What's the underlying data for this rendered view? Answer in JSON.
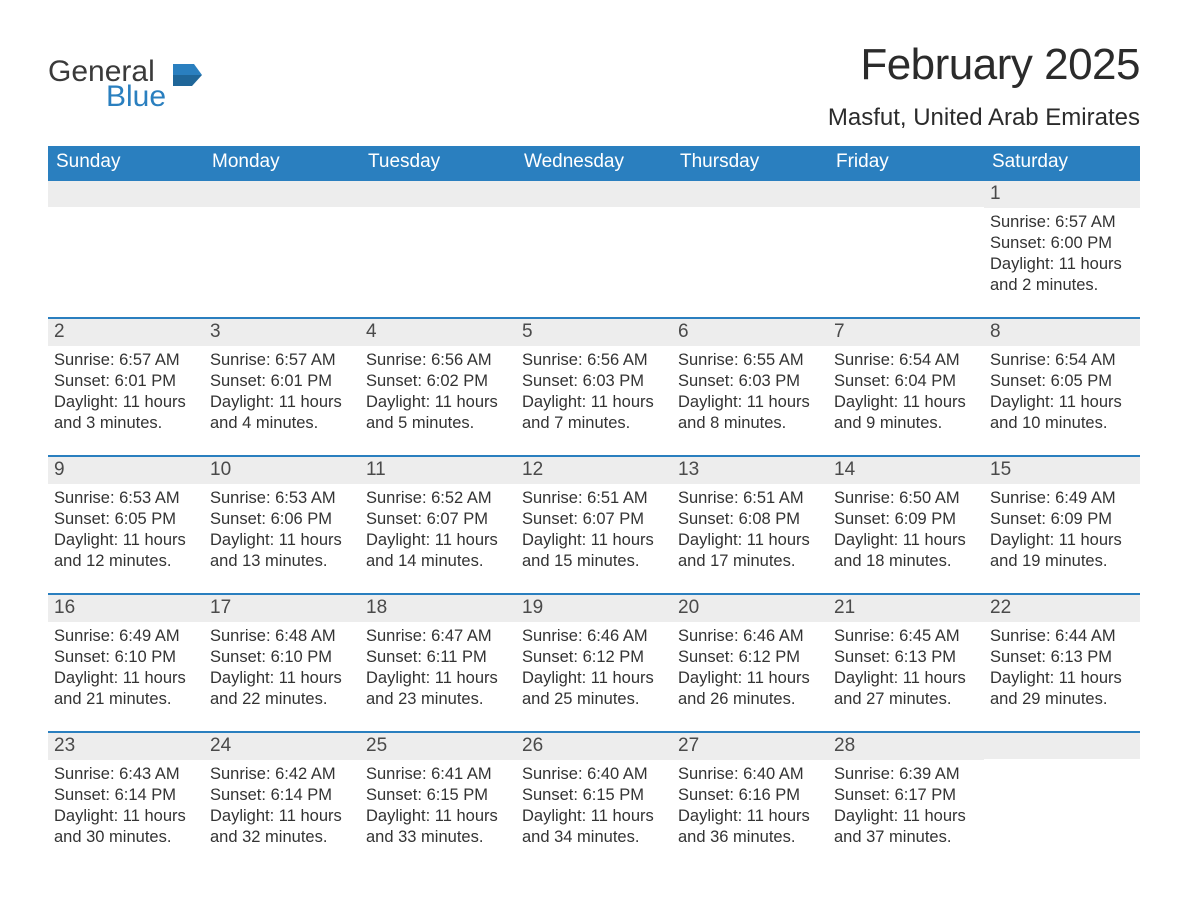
{
  "logo": {
    "general": "General",
    "blue": "Blue"
  },
  "title": "February 2025",
  "location": "Masfut, United Arab Emirates",
  "colors": {
    "header_bg": "#2a7fbf",
    "header_text": "#ffffff",
    "daynum_bg": "#ededed",
    "border": "#2a7fbf",
    "body_text": "#333333",
    "logo_gray": "#3a3a3a",
    "logo_blue": "#2a7fbf",
    "page_bg": "#ffffff"
  },
  "weekdays": [
    "Sunday",
    "Monday",
    "Tuesday",
    "Wednesday",
    "Thursday",
    "Friday",
    "Saturday"
  ],
  "grid": {
    "leading_blanks": 6,
    "trailing_blanks": 1,
    "columns": 7
  },
  "days": [
    {
      "n": "1",
      "sunrise": "6:57 AM",
      "sunset": "6:00 PM",
      "daylight": "11 hours and 2 minutes."
    },
    {
      "n": "2",
      "sunrise": "6:57 AM",
      "sunset": "6:01 PM",
      "daylight": "11 hours and 3 minutes."
    },
    {
      "n": "3",
      "sunrise": "6:57 AM",
      "sunset": "6:01 PM",
      "daylight": "11 hours and 4 minutes."
    },
    {
      "n": "4",
      "sunrise": "6:56 AM",
      "sunset": "6:02 PM",
      "daylight": "11 hours and 5 minutes."
    },
    {
      "n": "5",
      "sunrise": "6:56 AM",
      "sunset": "6:03 PM",
      "daylight": "11 hours and 7 minutes."
    },
    {
      "n": "6",
      "sunrise": "6:55 AM",
      "sunset": "6:03 PM",
      "daylight": "11 hours and 8 minutes."
    },
    {
      "n": "7",
      "sunrise": "6:54 AM",
      "sunset": "6:04 PM",
      "daylight": "11 hours and 9 minutes."
    },
    {
      "n": "8",
      "sunrise": "6:54 AM",
      "sunset": "6:05 PM",
      "daylight": "11 hours and 10 minutes."
    },
    {
      "n": "9",
      "sunrise": "6:53 AM",
      "sunset": "6:05 PM",
      "daylight": "11 hours and 12 minutes."
    },
    {
      "n": "10",
      "sunrise": "6:53 AM",
      "sunset": "6:06 PM",
      "daylight": "11 hours and 13 minutes."
    },
    {
      "n": "11",
      "sunrise": "6:52 AM",
      "sunset": "6:07 PM",
      "daylight": "11 hours and 14 minutes."
    },
    {
      "n": "12",
      "sunrise": "6:51 AM",
      "sunset": "6:07 PM",
      "daylight": "11 hours and 15 minutes."
    },
    {
      "n": "13",
      "sunrise": "6:51 AM",
      "sunset": "6:08 PM",
      "daylight": "11 hours and 17 minutes."
    },
    {
      "n": "14",
      "sunrise": "6:50 AM",
      "sunset": "6:09 PM",
      "daylight": "11 hours and 18 minutes."
    },
    {
      "n": "15",
      "sunrise": "6:49 AM",
      "sunset": "6:09 PM",
      "daylight": "11 hours and 19 minutes."
    },
    {
      "n": "16",
      "sunrise": "6:49 AM",
      "sunset": "6:10 PM",
      "daylight": "11 hours and 21 minutes."
    },
    {
      "n": "17",
      "sunrise": "6:48 AM",
      "sunset": "6:10 PM",
      "daylight": "11 hours and 22 minutes."
    },
    {
      "n": "18",
      "sunrise": "6:47 AM",
      "sunset": "6:11 PM",
      "daylight": "11 hours and 23 minutes."
    },
    {
      "n": "19",
      "sunrise": "6:46 AM",
      "sunset": "6:12 PM",
      "daylight": "11 hours and 25 minutes."
    },
    {
      "n": "20",
      "sunrise": "6:46 AM",
      "sunset": "6:12 PM",
      "daylight": "11 hours and 26 minutes."
    },
    {
      "n": "21",
      "sunrise": "6:45 AM",
      "sunset": "6:13 PM",
      "daylight": "11 hours and 27 minutes."
    },
    {
      "n": "22",
      "sunrise": "6:44 AM",
      "sunset": "6:13 PM",
      "daylight": "11 hours and 29 minutes."
    },
    {
      "n": "23",
      "sunrise": "6:43 AM",
      "sunset": "6:14 PM",
      "daylight": "11 hours and 30 minutes."
    },
    {
      "n": "24",
      "sunrise": "6:42 AM",
      "sunset": "6:14 PM",
      "daylight": "11 hours and 32 minutes."
    },
    {
      "n": "25",
      "sunrise": "6:41 AM",
      "sunset": "6:15 PM",
      "daylight": "11 hours and 33 minutes."
    },
    {
      "n": "26",
      "sunrise": "6:40 AM",
      "sunset": "6:15 PM",
      "daylight": "11 hours and 34 minutes."
    },
    {
      "n": "27",
      "sunrise": "6:40 AM",
      "sunset": "6:16 PM",
      "daylight": "11 hours and 36 minutes."
    },
    {
      "n": "28",
      "sunrise": "6:39 AM",
      "sunset": "6:17 PM",
      "daylight": "11 hours and 37 minutes."
    }
  ],
  "labels": {
    "sunrise": "Sunrise:",
    "sunset": "Sunset:",
    "daylight": "Daylight:"
  }
}
